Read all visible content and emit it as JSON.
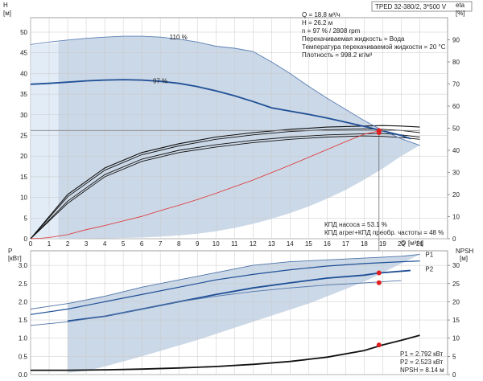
{
  "title_box": "TPED 32-380/2, 3*500 V",
  "colors": {
    "band": "#c8d6e6",
    "band_light": "#e2ecf7",
    "grid": "#c9c9c9",
    "curve_dark": "#1f4f96",
    "curve_black": "#111111",
    "system_curve": "#e03030",
    "marker": "#e02020",
    "duty_line": "#888888"
  },
  "chart_data": [
    {
      "type": "line",
      "panel": "head",
      "ylabel_top": "H",
      "ylabel_unit": "[м]",
      "ylabel_right_top": "eta",
      "ylabel_right_unit": "[%]",
      "xlabel": "Q",
      "xlabel_unit": "[м³/ч]",
      "xlim": [
        0,
        22.5
      ],
      "ylim": [
        0,
        53.5
      ],
      "y2lim": [
        0,
        100
      ],
      "x_ticks": [
        0,
        1,
        2,
        3,
        4,
        5,
        6,
        7,
        8,
        9,
        10,
        11,
        12,
        13,
        14,
        15,
        16,
        17,
        18,
        19,
        20,
        21
      ],
      "x_tick_labels": [
        "0",
        "1",
        "2",
        "3",
        "4",
        "5",
        "6",
        "7",
        "8",
        "9",
        "10",
        "11",
        "12",
        "13",
        "14",
        "15",
        "16",
        "17",
        "18",
        "19",
        "20",
        "21"
      ],
      "y_ticks": [
        0,
        5,
        10,
        15,
        20,
        25,
        30,
        35,
        40,
        45,
        50
      ],
      "y_tick_labels": [
        "0",
        "5",
        "10",
        "15",
        "20",
        "25",
        "30",
        "35",
        "40",
        "45",
        "50"
      ],
      "y2_ticks": [
        0,
        10,
        20,
        30,
        40,
        50,
        60,
        70,
        80,
        90
      ],
      "y2_tick_labels": [
        "0",
        "10",
        "20",
        "30",
        "40",
        "50",
        "60",
        "70",
        "80",
        "90"
      ],
      "grid": true,
      "info": {
        "lines": [
          "Q = 18.8 м³/ч",
          "H = 26.2 м",
          "n = 97 % / 2808 rpm",
          "Перекачиваемая жидкость = Вода",
          "Температура перекачиваемой жидкости = 20 °C",
          "Плотность = 998.2 кг/м³"
        ]
      },
      "efficiency_notes": [
        "КПД насоса = 53.1 %",
        "КПД агрег+КПД преобр. частоты = 48 %"
      ],
      "series": [
        {
          "name": "110 %",
          "x": [
            0,
            1,
            2,
            3,
            4,
            5,
            6,
            7,
            8,
            9,
            10,
            11,
            12,
            13,
            14,
            15,
            16,
            17,
            18,
            19,
            20,
            21
          ],
          "values": [
            47,
            47.6,
            48.1,
            48.5,
            48.8,
            49,
            49,
            48.8,
            48.3,
            47.6,
            46.6,
            46.1,
            45.3,
            42.8,
            40,
            36.9,
            34,
            31.3,
            28.6,
            26.2,
            24.2,
            22.6
          ]
        },
        {
          "name": "97 %",
          "x": [
            0,
            1,
            2,
            3,
            4,
            5,
            6,
            7,
            8,
            9,
            10,
            11,
            12,
            13,
            14,
            15,
            16,
            17,
            18,
            19,
            20,
            20.5
          ],
          "values": [
            37.4,
            37.6,
            37.9,
            38.2,
            38.4,
            38.5,
            38.4,
            38.1,
            37.6,
            36.8,
            35.8,
            34.6,
            33.2,
            31.7,
            30.9,
            30.1,
            29.2,
            28.2,
            27.2,
            26.1,
            25,
            24.2
          ]
        },
        {
          "x": [
            0,
            2,
            4,
            6,
            8,
            10,
            12,
            14,
            16,
            18,
            19,
            20,
            21
          ],
          "values": [
            26.2,
            26.2,
            26.2,
            26.2,
            26.2,
            26.2,
            26.2,
            26.2,
            26.2,
            26.2,
            26.2,
            26.2,
            26.2
          ]
        },
        {
          "x": [
            0,
            0.5,
            1,
            2,
            3,
            4,
            5,
            6,
            7,
            8,
            9,
            10,
            11,
            12,
            13,
            14,
            15,
            16,
            17,
            18,
            19
          ],
          "values": [
            0,
            0.1,
            0.3,
            1,
            2.2,
            3.2,
            4.3,
            5.4,
            6.8,
            8.1,
            9.5,
            11,
            12.6,
            14.2,
            16,
            17.8,
            19.7,
            21.6,
            23.5,
            25.3,
            26.3
          ]
        }
      ],
      "eff_series": [
        {
          "x": [
            0,
            2,
            4,
            6,
            8,
            10,
            12,
            14,
            16,
            18,
            19,
            20,
            21
          ],
          "values": [
            0,
            20,
            32,
            39,
            43,
            46,
            48,
            49.5,
            50.5,
            51,
            51.2,
            51,
            50.5
          ]
        },
        {
          "x": [
            0,
            2,
            4,
            6,
            8,
            10,
            12,
            14,
            16,
            18,
            19,
            20,
            21
          ],
          "values": [
            0,
            19,
            31,
            38,
            42,
            45,
            47,
            48.5,
            49.3,
            49.7,
            49.5,
            49,
            48
          ]
        },
        {
          "x": [
            0,
            2,
            4,
            6,
            8,
            10,
            12,
            14,
            16,
            18,
            19,
            20,
            21
          ],
          "values": [
            0,
            17,
            29,
            36,
            40,
            42.5,
            44.5,
            46,
            47,
            47.5,
            47.6,
            47,
            46
          ]
        },
        {
          "x": [
            0,
            2,
            4,
            6,
            8,
            10,
            12,
            14,
            16,
            18,
            19,
            20,
            21
          ],
          "values": [
            0,
            16,
            28,
            35,
            39,
            41.5,
            43.5,
            45,
            46,
            46.5,
            46.3,
            45.8,
            45
          ]
        }
      ],
      "duty_point": {
        "x": 18.8,
        "y": 26.2,
        "eta_pump": 53.1,
        "eta_total": 48
      }
    },
    {
      "type": "line",
      "panel": "power",
      "ylabel_top": "P",
      "ylabel_unit": "[кВт]",
      "ylabel_right_top": "NPSH",
      "ylabel_right_unit": "[м]",
      "xlim": [
        0,
        22.5
      ],
      "ylim": [
        0,
        3.4
      ],
      "y2lim": [
        0,
        34
      ],
      "y_ticks": [
        0,
        0.5,
        1,
        1.5,
        2,
        2.5,
        3
      ],
      "y_tick_labels": [
        "0.0",
        "0.5",
        "1.0",
        "1.5",
        "2.0",
        "2.5",
        "3.0"
      ],
      "y2_ticks": [
        0,
        5,
        10,
        15,
        20,
        25,
        30
      ],
      "y2_tick_labels": [
        "0",
        "5",
        "10",
        "15",
        "20",
        "25",
        "30"
      ],
      "grid": true,
      "series": [
        {
          "name": "P1",
          "x": [
            0,
            2,
            4,
            6,
            8,
            10,
            12,
            14,
            16,
            18,
            20,
            21
          ],
          "values": [
            1.8,
            1.95,
            2.15,
            2.4,
            2.6,
            2.8,
            3.0,
            3.1,
            3.15,
            3.2,
            3.25,
            3.3
          ]
        },
        {
          "x": [
            0,
            2,
            4,
            6,
            8,
            10,
            12,
            14,
            16,
            18,
            20,
            21
          ],
          "values": [
            1.65,
            1.8,
            2.0,
            2.2,
            2.4,
            2.6,
            2.75,
            2.88,
            2.98,
            3.05,
            3.1,
            3.12
          ]
        },
        {
          "name": "P2",
          "x": [
            2,
            4,
            6,
            8,
            10,
            12,
            14,
            16,
            18,
            18.8,
            20.5
          ],
          "values": [
            1.47,
            1.6,
            1.8,
            2.0,
            2.2,
            2.38,
            2.52,
            2.65,
            2.73,
            2.79,
            2.86
          ]
        },
        {
          "x": [
            0,
            2,
            4,
            6,
            8,
            10,
            12,
            14,
            16,
            18,
            20
          ],
          "values": [
            1.35,
            1.45,
            1.6,
            1.8,
            2.0,
            2.15,
            2.28,
            2.38,
            2.46,
            2.52,
            2.58
          ]
        }
      ],
      "npsh": {
        "x": [
          0,
          2,
          4,
          6,
          8,
          10,
          12,
          14,
          16,
          18,
          19,
          20,
          21
        ],
        "values": [
          1.2,
          1.2,
          1.3,
          1.5,
          1.8,
          2.2,
          2.8,
          3.6,
          4.8,
          6.6,
          8.14,
          9.4,
          10.8
        ]
      },
      "duty_values": {
        "p1": 2.792,
        "p2": 2.523,
        "npsh": 8.14
      },
      "duty_values_text": [
        "P1 = 2.792 кВт",
        "P2 = 2.523 кВт",
        "NPSH = 8.14 м"
      ]
    }
  ]
}
